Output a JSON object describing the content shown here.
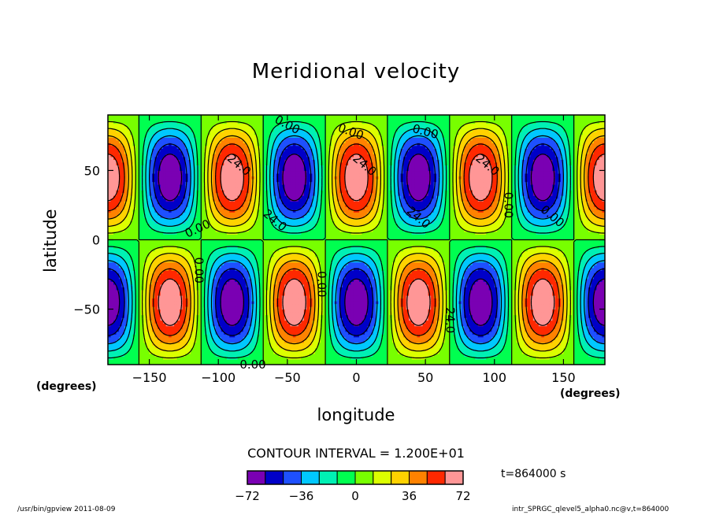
{
  "chart_data": {
    "type": "heatmap",
    "subtype": "filled-contour",
    "title": "Meridional velocity",
    "xlabel": "longitude",
    "ylabel": "latitude",
    "x_units": "(degrees)",
    "y_units": "(degrees)",
    "xlim": [
      -180,
      180
    ],
    "ylim": [
      -90,
      90
    ],
    "x_ticks": [
      -150,
      -100,
      -50,
      0,
      50,
      100,
      150
    ],
    "y_ticks": [
      50,
      0,
      -50
    ],
    "contour_interval_text": "CONTOUR INTERVAL = 1.200E+01",
    "contour_interval": 12,
    "field": {
      "description_of_values": "v(lon,lat) = 72 * cos(4*lon) * sin(2*lat)",
      "amplitude": 72,
      "zonal_wavenumber": 4,
      "nodal_latitude": 0
    },
    "contour_labels": [
      "0.00",
      "0.00",
      "0.00",
      "24.0",
      "24.0",
      "24.0",
      "0.00",
      "0.00",
      "0.00",
      "0.00",
      "24.0",
      "24.0",
      "24.0",
      "0.00",
      "0.00"
    ],
    "colorbar": {
      "levels": [
        -72,
        -60,
        -48,
        -36,
        -24,
        -12,
        0,
        12,
        24,
        36,
        48,
        60,
        72
      ],
      "tick_labels": [
        "−72",
        "−36",
        "0",
        "36",
        "72"
      ],
      "tick_values": [
        -72,
        -36,
        0,
        36,
        72
      ],
      "colors": [
        "#7a00b3",
        "#0000c8",
        "#1e50ff",
        "#00c8ff",
        "#00f0b4",
        "#00ff50",
        "#78ff00",
        "#dcff00",
        "#ffd200",
        "#ff8200",
        "#ff2800",
        "#ff9696"
      ]
    }
  },
  "time_label": "t=864000 s",
  "footer_left": "/usr/bin/gpview   2011-08-09",
  "footer_right": "intr_SPRGC_qlevel5_alpha0.nc@v,t=864000"
}
